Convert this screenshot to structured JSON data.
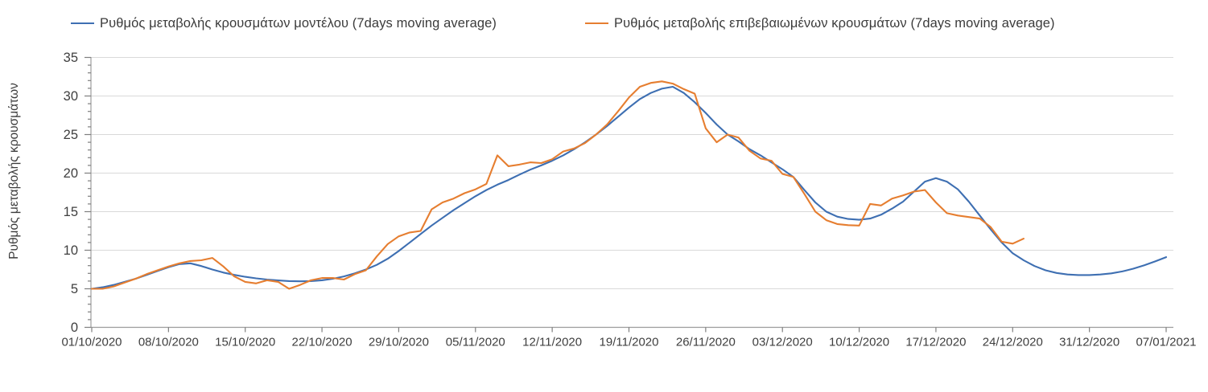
{
  "legend": {
    "model": {
      "label": "Ρυθμός μεταβολής κρουσμάτων μοντέλου (7days moving average)",
      "color": "#3e6fb2"
    },
    "confirmed": {
      "label": "Ρυθμός μεταβολής επιβεβαιωμένων κρουσμάτων (7days moving average)",
      "color": "#e67e30"
    }
  },
  "y_axis": {
    "title": "Ρυθμός μεταβολής κρουσμάτων",
    "min": 0,
    "max": 35,
    "major_step": 5,
    "minor_step": 1,
    "major_labels": [
      "0",
      "5",
      "10",
      "15",
      "20",
      "25",
      "30",
      "35"
    ]
  },
  "x_axis": {
    "tick_interval_days": 7,
    "tick_labels": [
      "01/10/2020",
      "08/10/2020",
      "15/10/2020",
      "22/10/2020",
      "29/10/2020",
      "05/11/2020",
      "12/11/2020",
      "19/11/2020",
      "26/11/2020",
      "03/12/2020",
      "10/12/2020",
      "17/12/2020",
      "24/12/2020",
      "31/12/2020",
      "07/01/2021"
    ]
  },
  "colors": {
    "grid": "#d9d9d9",
    "axis": "#9c9c9c",
    "tick": "#7f7f7f",
    "tick_text": "#3f3f3f",
    "background": "#ffffff"
  },
  "chart_data": {
    "type": "line",
    "title": "",
    "xlabel": "",
    "ylabel": "Ρυθμός μεταβολής κρουσμάτων",
    "ylim": [
      0,
      35
    ],
    "grid": "horizontal-major",
    "legend_position": "top",
    "x_unit": "days since 01/10/2020 (daily points)",
    "x_tick_days": [
      0,
      7,
      14,
      21,
      28,
      35,
      42,
      49,
      56,
      63,
      70,
      77,
      84,
      91,
      98
    ],
    "series": [
      {
        "name": "Ρυθμός μεταβολής κρουσμάτων μοντέλου (7days moving average)",
        "color": "#3e6fb2",
        "start_day": 0,
        "values": [
          5.0,
          5.2,
          5.5,
          5.9,
          6.3,
          6.8,
          7.3,
          7.8,
          8.2,
          8.3,
          7.95,
          7.5,
          7.1,
          6.8,
          6.55,
          6.35,
          6.2,
          6.08,
          6.0,
          5.97,
          6.0,
          6.1,
          6.3,
          6.6,
          7.0,
          7.5,
          8.1,
          8.9,
          9.9,
          11.0,
          12.1,
          13.2,
          14.2,
          15.2,
          16.1,
          17.0,
          17.8,
          18.5,
          19.1,
          19.8,
          20.45,
          21.0,
          21.6,
          22.3,
          23.1,
          24.0,
          25.0,
          26.1,
          27.3,
          28.5,
          29.6,
          30.4,
          30.95,
          31.2,
          30.4,
          29.2,
          27.8,
          26.3,
          25.0,
          24.1,
          23.1,
          22.3,
          21.4,
          20.5,
          19.5,
          17.8,
          16.2,
          15.0,
          14.35,
          14.05,
          13.95,
          14.1,
          14.6,
          15.4,
          16.3,
          17.6,
          18.9,
          19.35,
          18.9,
          17.9,
          16.3,
          14.5,
          12.7,
          11.0,
          9.6,
          8.7,
          7.95,
          7.4,
          7.05,
          6.85,
          6.78,
          6.78,
          6.85,
          7.0,
          7.25,
          7.6,
          8.05,
          8.55,
          9.1
        ]
      },
      {
        "name": "Ρυθμός μεταβολής επιβεβαιωμένων κρουσμάτων (7days moving average)",
        "color": "#e67e30",
        "start_day": 0,
        "values": [
          5.0,
          5.0,
          5.3,
          5.8,
          6.3,
          6.9,
          7.4,
          7.9,
          8.3,
          8.6,
          8.7,
          9.0,
          7.9,
          6.6,
          5.9,
          5.7,
          6.1,
          5.9,
          5.0,
          5.5,
          6.1,
          6.4,
          6.4,
          6.2,
          6.9,
          7.4,
          9.2,
          10.8,
          11.8,
          12.3,
          12.5,
          15.3,
          16.2,
          16.7,
          17.4,
          17.9,
          18.6,
          22.3,
          20.9,
          21.1,
          21.4,
          21.3,
          21.8,
          22.8,
          23.2,
          23.9,
          25.0,
          26.3,
          28.0,
          29.8,
          31.2,
          31.7,
          31.9,
          31.6,
          30.9,
          30.3,
          25.8,
          24.0,
          25.0,
          24.6,
          22.9,
          21.9,
          21.6,
          19.9,
          19.5,
          17.3,
          15.0,
          13.9,
          13.4,
          13.25,
          13.2,
          16.0,
          15.8,
          16.7,
          17.1,
          17.6,
          17.8,
          16.2,
          14.8,
          14.5,
          14.3,
          14.1,
          13.0,
          11.1,
          10.85,
          11.5
        ]
      }
    ]
  }
}
